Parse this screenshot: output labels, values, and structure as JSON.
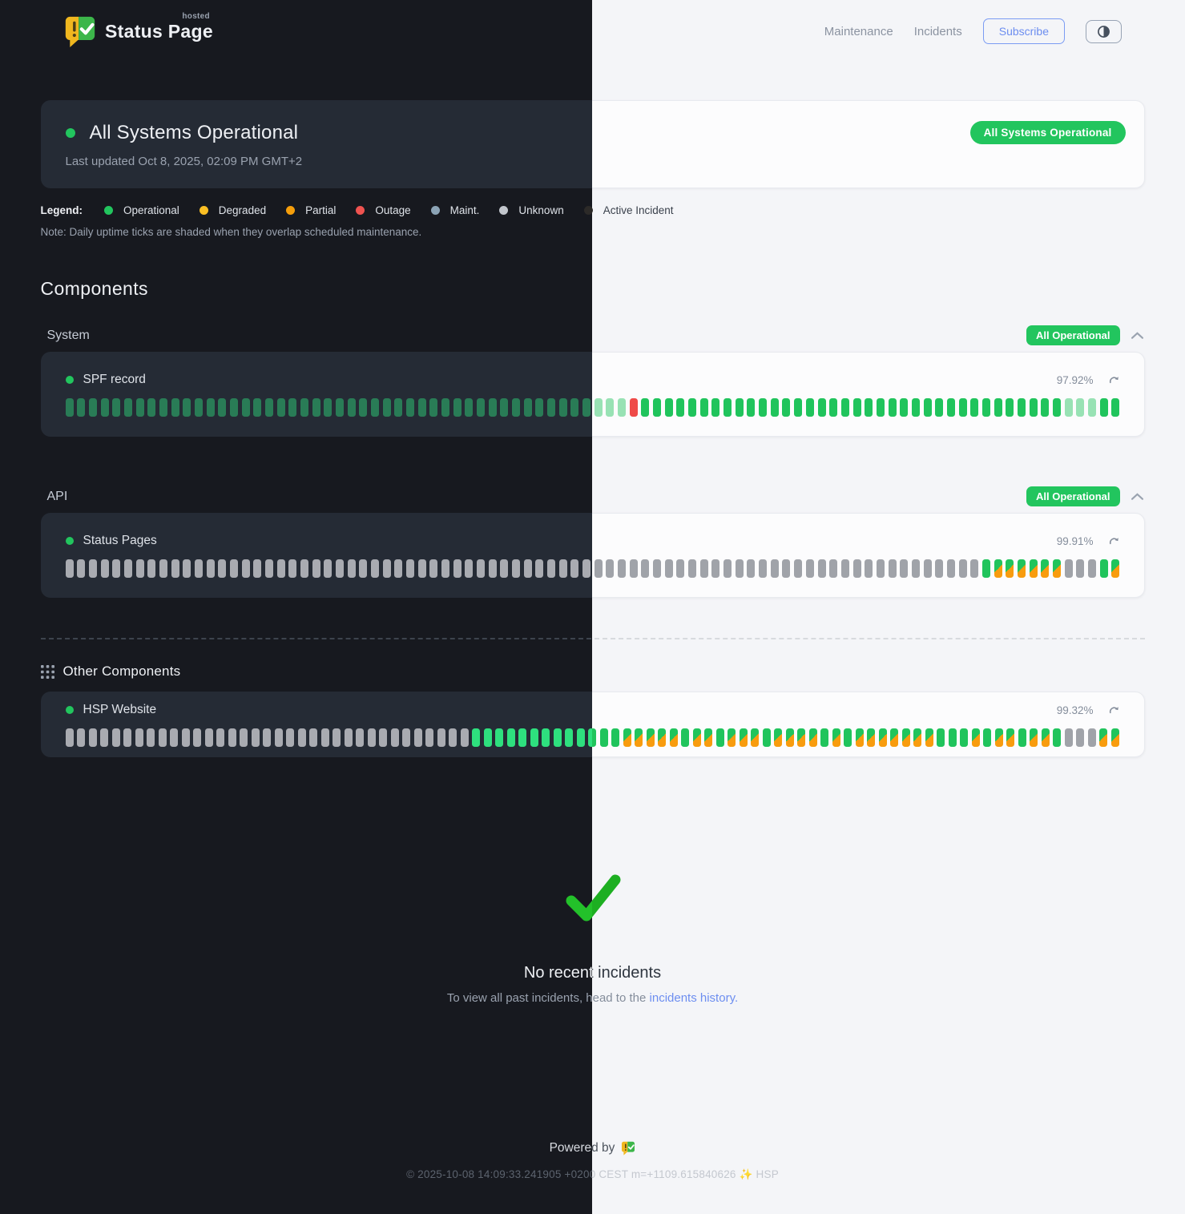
{
  "header": {
    "brand": {
      "name": "Status Page",
      "superscript": "hosted"
    },
    "nav": [
      {
        "label": "Maintenance"
      },
      {
        "label": "Incidents"
      }
    ],
    "subscribe_label": "Subscribe"
  },
  "banner": {
    "title": "All Systems Operational",
    "last_updated": "Last updated Oct 8, 2025, 02:09 PM GMT+2",
    "badge": "All Systems Operational"
  },
  "legend": {
    "label": "Legend:",
    "items": [
      {
        "label": "Operational",
        "color": "#22c55e"
      },
      {
        "label": "Degraded",
        "color": "#fbbf24"
      },
      {
        "label": "Partial",
        "color": "#f59e0b"
      },
      {
        "label": "Outage",
        "color": "#ef5350"
      },
      {
        "label": "Maint.",
        "color": "#8ba3b5"
      },
      {
        "label": "Unknown",
        "color": "#c2c6cc"
      },
      {
        "label": "Active Incident",
        "color": "#2c2a28"
      }
    ],
    "note": "Note: Daily uptime ticks are shaded when they overlap scheduled maintenance."
  },
  "components": {
    "heading": "Components",
    "groups": [
      {
        "name": "System",
        "badge": "All Operational",
        "items": [
          {
            "name": "SPF record",
            "uptime": "97.92%",
            "ticks": "ffffffffffffffffffffffffffffffffffffffffffffffffxoooooooooooooooooooooooooooooooooooofffoo"
          }
        ]
      },
      {
        "name": "API",
        "badge": "All Operational",
        "items": [
          {
            "name": "Status Pages",
            "uptime": "99.91%",
            "ticks": "uuuuuuuuuuuuuuuuuuuuuuuuuuuuuuuuuuuuuuuuuuuuuuuuuuuuuuuuuuuuuuuuuuuuuuuuuuuuuuommmmmmuuuom"
          }
        ]
      }
    ],
    "other": {
      "heading": "Other Components",
      "items": [
        {
          "name": "HSP Website",
          "uptime": "99.32%",
          "ticks": "uuuuuuuuuuuuuuuuuuuuuuuuuuuuuuuuuuuooooooooooooommmmmommommmommmmomommmmmmmooomommommouuumm"
        }
      ]
    }
  },
  "ticks_encoding": {
    "o": "operational",
    "f": "operational-faded",
    "x": "outage",
    "u": "unknown",
    "m": "operational-maintenance-shaded"
  },
  "incidents": {
    "title": "No recent incidents",
    "subtitle_prefix": "To view all past incidents, head to the ",
    "link_label": "incidents history."
  },
  "footer": {
    "powered_by": "Powered by",
    "copyright": "© 2025-10-08 14:09:33.241905 +0200 CEST m=+1109.615840626 ✨ HSP"
  },
  "colors": {
    "operational_dot": "#22c55e",
    "badge_green": "#22c55e",
    "tick_operational_light": "#20c45c",
    "tick_operational_dark": "#2ee07e",
    "tick_outage": "#ef4a48",
    "tick_maintenance_orange": "#f89c0e",
    "tick_unknown": "#a3a6ac",
    "link_blue": "#6d8ef0"
  }
}
